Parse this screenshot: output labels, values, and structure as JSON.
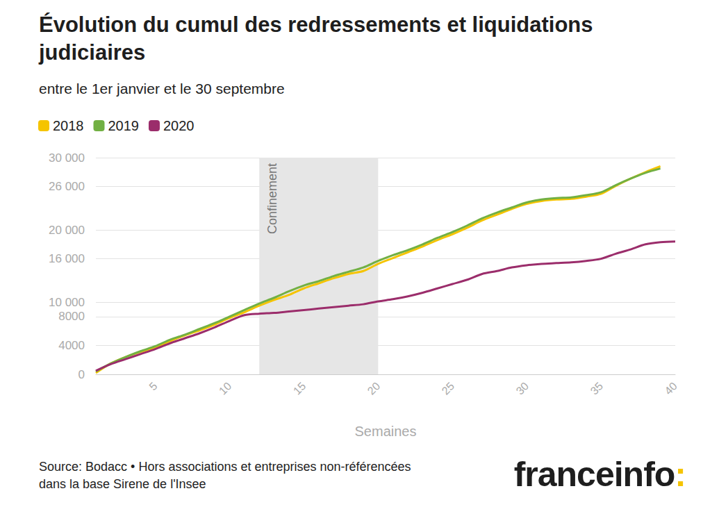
{
  "chart_data": {
    "type": "line",
    "title": "Évolution du cumul des redressements et liquidations judiciaires",
    "subtitle": "entre le 1er janvier et le 30 septembre",
    "x_label": "Semaines",
    "source": "Source: Bodacc • Hors associations et entreprises non-référencées dans la base Sirene de l'Insee",
    "logo": "franceinfo:",
    "x": [
      1,
      2,
      3,
      4,
      5,
      6,
      7,
      8,
      9,
      10,
      11,
      12,
      13,
      14,
      15,
      16,
      17,
      18,
      19,
      20,
      21,
      22,
      23,
      24,
      25,
      26,
      27,
      28,
      29,
      30,
      31,
      32,
      33,
      34,
      35,
      36,
      37,
      38,
      39,
      40
    ],
    "series": [
      {
        "name": "2018",
        "color": "#f5c400",
        "values": [
          200,
          1500,
          2400,
          3100,
          3700,
          4600,
          5400,
          6100,
          6900,
          7800,
          8600,
          9500,
          10300,
          11000,
          11900,
          12600,
          13300,
          13900,
          14300,
          15300,
          16100,
          16900,
          17700,
          18600,
          19400,
          20300,
          21300,
          22100,
          22900,
          23600,
          24000,
          24200,
          24300,
          24600,
          25000,
          26100,
          27100,
          28000,
          28800,
          null
        ]
      },
      {
        "name": "2019",
        "color": "#72b043",
        "values": [
          400,
          1500,
          2400,
          3200,
          3900,
          4800,
          5500,
          6300,
          7100,
          8000,
          8900,
          9800,
          10600,
          11500,
          12300,
          12900,
          13600,
          14200,
          14800,
          15700,
          16500,
          17200,
          18000,
          18900,
          19700,
          20600,
          21600,
          22400,
          23100,
          23800,
          24200,
          24400,
          24500,
          24800,
          25200,
          26200,
          27100,
          27900,
          28500,
          null
        ]
      },
      {
        "name": "2020",
        "color": "#9b2d6b",
        "values": [
          500,
          1400,
          2100,
          2800,
          3500,
          4300,
          5000,
          5700,
          6500,
          7400,
          8200,
          8400,
          8500,
          8700,
          8900,
          9100,
          9300,
          9500,
          9700,
          10100,
          10400,
          10800,
          11300,
          11900,
          12500,
          13100,
          13900,
          14300,
          14800,
          15100,
          15300,
          15400,
          15500,
          15700,
          16000,
          16700,
          17300,
          18000,
          18300,
          18400
        ]
      }
    ],
    "xlim": [
      1,
      40
    ],
    "xticks": [
      5,
      10,
      15,
      20,
      25,
      30,
      35,
      40
    ],
    "ylim": [
      0,
      30000
    ],
    "yticks": [
      0,
      4000,
      8000,
      {
        "value": 10000,
        "label": "10 000"
      },
      {
        "value": 16000,
        "label": "16 000"
      },
      {
        "value": 20000,
        "label": "20 000"
      },
      {
        "value": 26000,
        "label": "26 000"
      },
      {
        "value": 30000,
        "label": "30 000"
      }
    ],
    "annotations": [
      {
        "label": "Confinement",
        "x_start": 12,
        "x_end": 20
      }
    ],
    "grid": true,
    "legend": "top-left"
  }
}
